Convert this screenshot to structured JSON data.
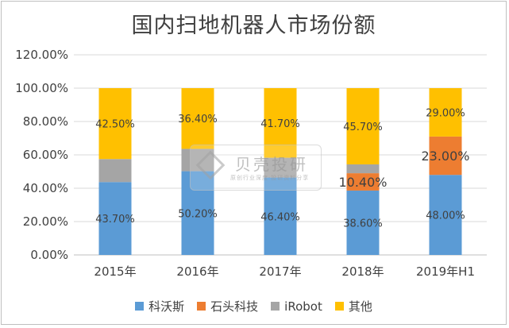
{
  "chart_data": {
    "type": "bar",
    "stacked": true,
    "title": "国内扫地机器人市场份额",
    "categories": [
      "2015年",
      "2016年",
      "2017年",
      "2018年",
      "2019年H1"
    ],
    "series": [
      {
        "name": "科沃斯",
        "color": "#5b9bd5",
        "values": [
          43.7,
          50.2,
          46.4,
          38.6,
          48.0
        ],
        "labels": [
          "43.70%",
          "50.20%",
          "46.40%",
          "38.60%",
          "48.00%"
        ]
      },
      {
        "name": "石头科技",
        "color": "#ed7d31",
        "values": [
          0,
          0,
          0,
          10.4,
          23.0
        ],
        "labels": [
          "",
          "",
          "",
          "10.40%",
          "23.00%"
        ]
      },
      {
        "name": "iRobot",
        "color": "#a5a5a5",
        "values": [
          13.8,
          13.4,
          11.9,
          5.3,
          0
        ],
        "labels": [
          "",
          "",
          "",
          "",
          ""
        ]
      },
      {
        "name": "其他",
        "color": "#ffc000",
        "values": [
          42.5,
          36.4,
          41.7,
          45.7,
          29.0
        ],
        "labels": [
          "42.50%",
          "36.40%",
          "41.70%",
          "45.70%",
          "29.00%"
        ]
      }
    ],
    "yticks": [
      "0.00%",
      "20.00%",
      "40.00%",
      "60.00%",
      "80.00%",
      "100.00%",
      "120.00%"
    ],
    "ylim": [
      0,
      120
    ],
    "grid": true,
    "legend_position": "bottom"
  },
  "watermark": {
    "name": "贝壳投研",
    "tagline": "原创行业深度·投研资料分享"
  }
}
